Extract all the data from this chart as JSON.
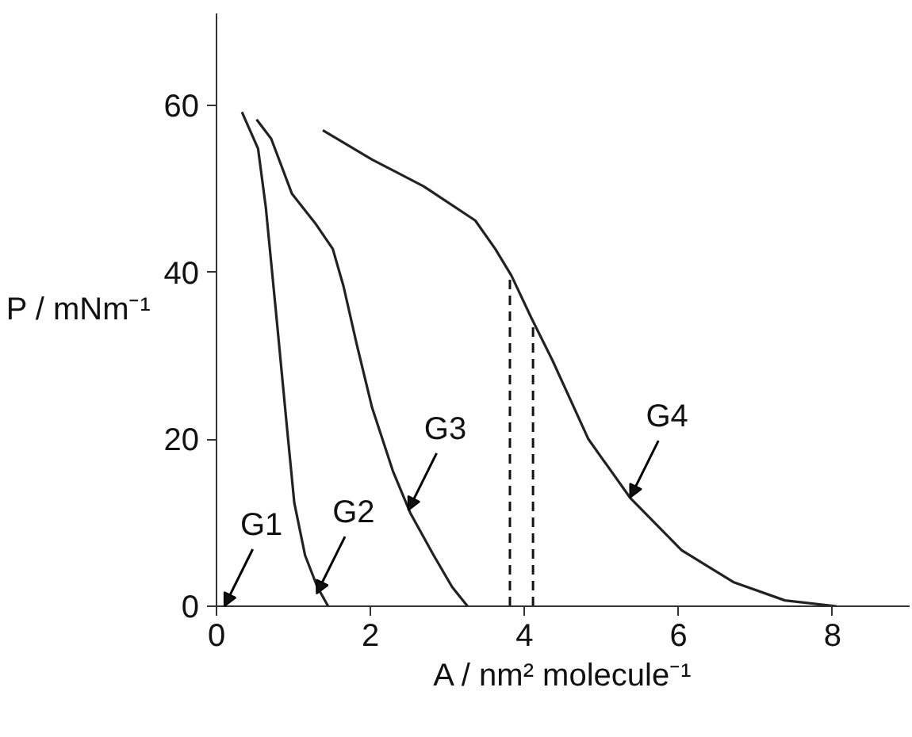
{
  "chart_data": {
    "type": "line",
    "xlabel": "A / nm² molecule⁻¹",
    "ylabel": "P / mNm⁻¹",
    "xlim": [
      0,
      9
    ],
    "ylim": [
      0,
      71
    ],
    "xticks": [
      0,
      2,
      4,
      6,
      8
    ],
    "yticks": [
      0,
      20,
      40,
      60
    ],
    "grid": false,
    "marker": "none",
    "line_style": "solid",
    "series": [
      {
        "color": "#222222",
        "x": [
          0.33,
          0.54,
          0.64,
          0.78,
          0.91,
          1.01,
          1.15,
          1.31,
          1.45
        ],
        "values": [
          59.2,
          54.8,
          47.8,
          34.5,
          21.9,
          12.4,
          6.1,
          2.3,
          0
        ]
      },
      {
        "color": "#222222",
        "x": [
          0.52,
          0.71,
          0.98,
          1.28,
          1.51,
          1.65,
          1.82,
          2.02,
          2.29,
          2.52,
          2.82,
          3.06,
          3.26
        ],
        "values": [
          58.3,
          56,
          49.4,
          45.9,
          42.8,
          38.3,
          31.4,
          23.8,
          16.2,
          11.1,
          6.1,
          2.3,
          0
        ]
      },
      {
        "color": "#222222",
        "x": [
          1.38,
          2.02,
          2.69,
          3.36,
          3.62,
          3.83,
          4.09,
          4.36,
          4.83,
          5.37,
          6.04,
          6.71,
          7.38,
          8.05
        ],
        "values": [
          57.0,
          53.5,
          50.3,
          46.2,
          42.8,
          39.6,
          34.5,
          29.5,
          20.0,
          13.0,
          6.7,
          2.9,
          0.7,
          0
        ]
      }
    ],
    "ref_lines": [
      {
        "axis": "x",
        "value": 3.81,
        "line_style": "dashed"
      },
      {
        "axis": "x",
        "value": 4.11,
        "line_style": "dashed"
      }
    ],
    "annotations": [
      "G1",
      {
        "text": "G2",
        "x": 1.3,
        "y": 1.5
      },
      {
        "text": "G3",
        "x": 2.49,
        "y": 11.5
      },
      {
        "text": "G4",
        "x": 5.37,
        "y": 13
      }
    ]
  }
}
